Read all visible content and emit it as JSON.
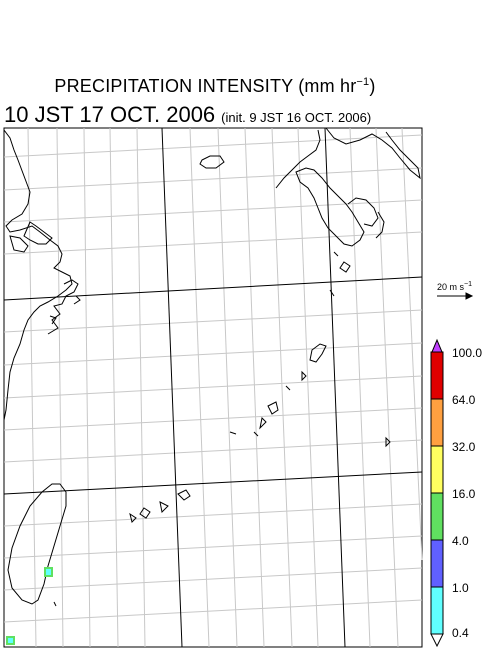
{
  "title": {
    "main": "PRECIPITATION INTENSITY (mm hr",
    "unit_exp": "−1",
    "close": ")"
  },
  "subtitle": {
    "time": "10 JST 17 OCT. 2006",
    "init": "(init. 9 JST 16 OCT. 2006)"
  },
  "vector_ref": {
    "label": "20 m s",
    "exp": "−1"
  },
  "legend": {
    "levels": [
      "100.0",
      "64.0",
      "32.0",
      "16.0",
      "4.0",
      "1.0",
      "0.4"
    ],
    "colors": [
      "#e00000",
      "#ffa040",
      "#ffff60",
      "#60e060",
      "#6060ff",
      "#60ffff"
    ],
    "over_color": "#c040ff",
    "under_color": "#ffffff"
  }
}
